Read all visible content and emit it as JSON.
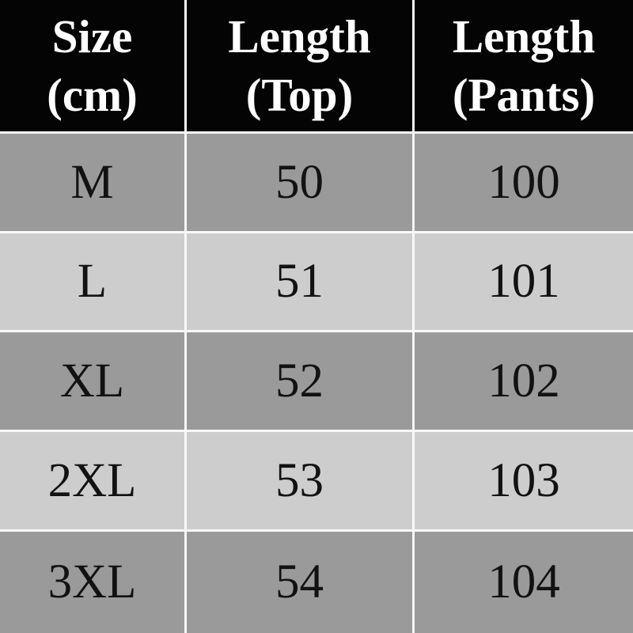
{
  "table": {
    "headers": [
      {
        "line1": "Size",
        "line2": "(cm)"
      },
      {
        "line1": "Length",
        "line2": "(Top)"
      },
      {
        "line1": "Length",
        "line2": "(Pants)"
      }
    ],
    "rows": [
      {
        "size": "M",
        "length_top": "50",
        "length_pants": "100"
      },
      {
        "size": "L",
        "length_top": "51",
        "length_pants": "101"
      },
      {
        "size": "XL",
        "length_top": "52",
        "length_pants": "102"
      },
      {
        "size": "2XL",
        "length_top": "53",
        "length_pants": "103"
      },
      {
        "size": "3XL",
        "length_top": "54",
        "length_pants": "104"
      }
    ],
    "colors": {
      "header_bg": "#040404",
      "header_text": "#ffffff",
      "row_dark_bg": "#9a9a9a",
      "row_light_bg": "#cdcdcd",
      "gridline": "#f8f8f8",
      "cell_text": "#121212"
    }
  },
  "chart_data": {
    "type": "table",
    "title": "",
    "columns": [
      "Size (cm)",
      "Length (Top)",
      "Length (Pants)"
    ],
    "rows": [
      [
        "M",
        50,
        100
      ],
      [
        "L",
        51,
        101
      ],
      [
        "XL",
        52,
        102
      ],
      [
        "2XL",
        53,
        103
      ],
      [
        "3XL",
        54,
        104
      ]
    ]
  }
}
